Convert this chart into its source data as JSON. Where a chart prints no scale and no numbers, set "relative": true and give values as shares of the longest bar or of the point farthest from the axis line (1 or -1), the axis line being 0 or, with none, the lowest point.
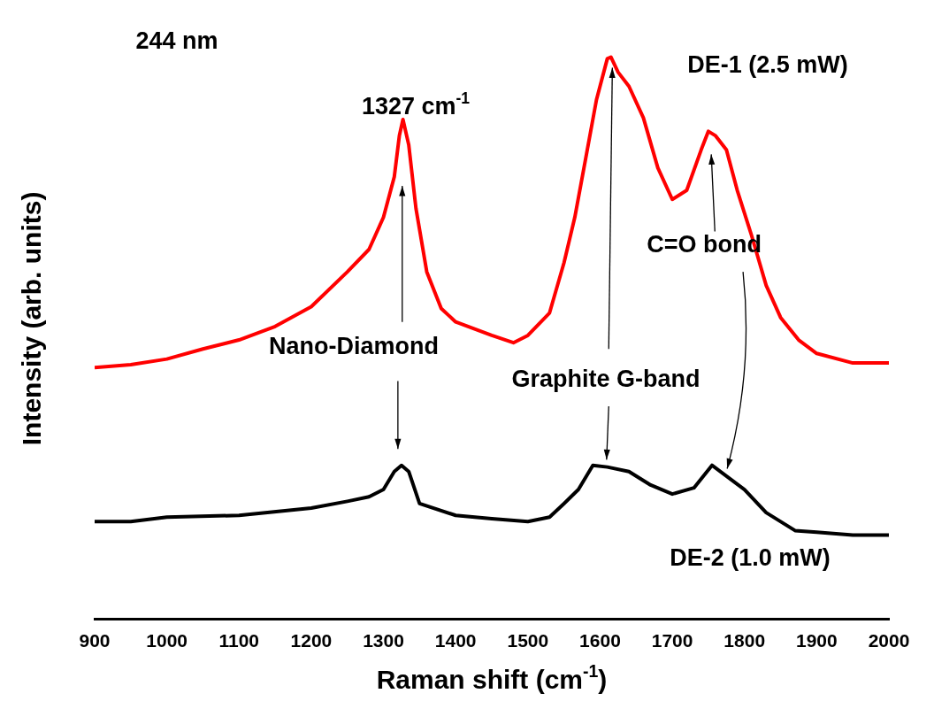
{
  "chart_data": {
    "type": "line",
    "xlabel": "Raman shift (cm$^{-1}$)",
    "ylabel": "Intensity (arb. units)",
    "relative": true,
    "legend": false,
    "grid": false,
    "marker": "none",
    "line_style": "solid",
    "xlim": [
      900,
      2000
    ],
    "xticks": [
      900,
      1000,
      1100,
      1200,
      1300,
      1400,
      1500,
      1600,
      1700,
      1800,
      1900,
      2000
    ],
    "series": [
      {
        "color": "#ff0000",
        "x": [
          900,
          950,
          1000,
          1050,
          1100,
          1150,
          1200,
          1250,
          1280,
          1300,
          1315,
          1322,
          1327,
          1335,
          1345,
          1360,
          1380,
          1400,
          1450,
          1480,
          1500,
          1530,
          1550,
          1565,
          1580,
          1595,
          1610,
          1615,
          1625,
          1640,
          1660,
          1680,
          1700,
          1720,
          1740,
          1750,
          1760,
          1775,
          1790,
          1810,
          1830,
          1850,
          1875,
          1900,
          1950,
          2000
        ],
        "values": [
          0.448,
          0.453,
          0.463,
          0.481,
          0.497,
          0.521,
          0.556,
          0.618,
          0.658,
          0.715,
          0.787,
          0.86,
          0.889,
          0.844,
          0.731,
          0.618,
          0.553,
          0.529,
          0.505,
          0.492,
          0.505,
          0.545,
          0.634,
          0.715,
          0.819,
          0.924,
          0.997,
          1,
          0.973,
          0.948,
          0.892,
          0.803,
          0.747,
          0.763,
          0.835,
          0.868,
          0.86,
          0.835,
          0.763,
          0.682,
          0.594,
          0.537,
          0.497,
          0.473,
          0.456,
          0.456
        ]
      },
      {
        "color": "#000000",
        "x": [
          900,
          950,
          1000,
          1100,
          1200,
          1250,
          1280,
          1300,
          1315,
          1325,
          1335,
          1350,
          1400,
          1450,
          1500,
          1530,
          1550,
          1570,
          1590,
          1610,
          1640,
          1670,
          1700,
          1730,
          1755,
          1775,
          1800,
          1830,
          1870,
          1900,
          1950,
          2000
        ],
        "values": [
          0.174,
          0.174,
          0.182,
          0.185,
          0.198,
          0.21,
          0.218,
          0.231,
          0.263,
          0.274,
          0.263,
          0.206,
          0.185,
          0.179,
          0.174,
          0.182,
          0.206,
          0.231,
          0.274,
          0.271,
          0.263,
          0.239,
          0.223,
          0.234,
          0.274,
          0.255,
          0.231,
          0.19,
          0.158,
          0.155,
          0.15,
          0.15
        ]
      }
    ],
    "annotations": [
      "244 nm",
      "DE-1 (2.5 mW)",
      "1327 cm$^{-1}$",
      "Nano-Diamond",
      "Graphite G-band",
      "C=O bond",
      "DE-2 (1.0 mW)"
    ]
  }
}
